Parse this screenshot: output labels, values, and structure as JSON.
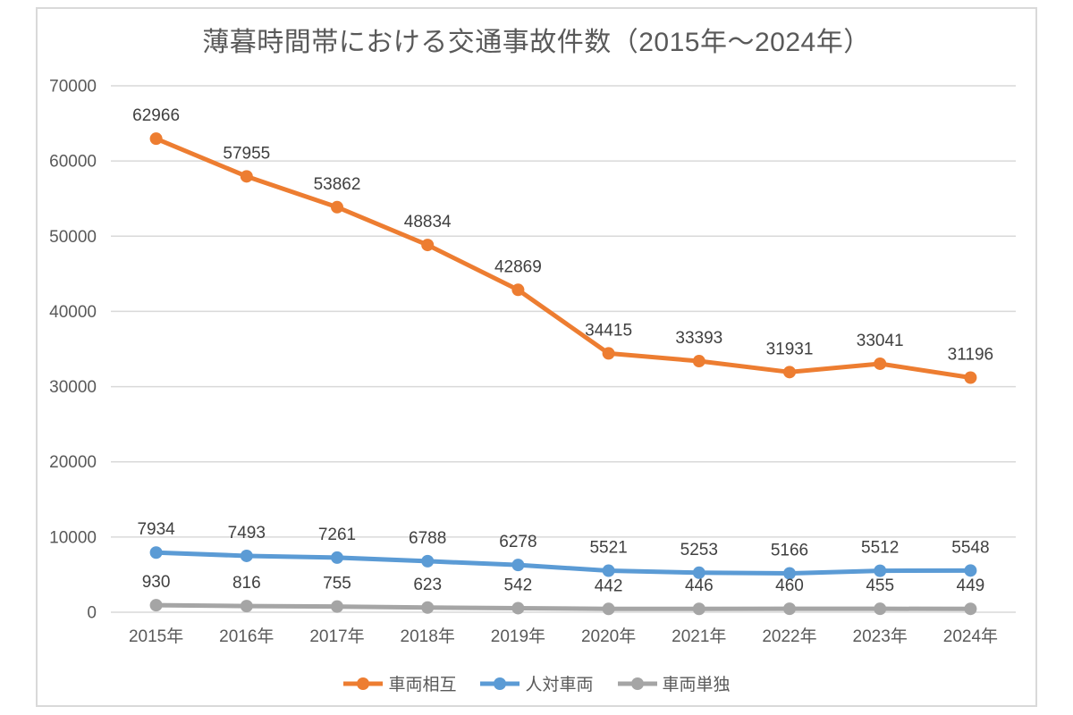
{
  "chart_data": {
    "type": "line",
    "title": "薄暮時間帯における交通事故件数（2015年～2024年）",
    "categories": [
      "2015年",
      "2016年",
      "2017年",
      "2018年",
      "2019年",
      "2020年",
      "2021年",
      "2022年",
      "2023年",
      "2024年"
    ],
    "series": [
      {
        "name": "車両相互",
        "color": "#ED7D31",
        "values": [
          62966,
          57955,
          53862,
          48834,
          42869,
          34415,
          33393,
          31931,
          33041,
          31196
        ]
      },
      {
        "name": "人対車両",
        "color": "#5B9BD5",
        "values": [
          7934,
          7493,
          7261,
          6788,
          6278,
          5521,
          5253,
          5166,
          5512,
          5548
        ]
      },
      {
        "name": "車両単独",
        "color": "#A5A5A5",
        "values": [
          930,
          816,
          755,
          623,
          542,
          442,
          446,
          460,
          455,
          449
        ]
      }
    ],
    "ylim": [
      0,
      70000
    ],
    "ytick_interval": 10000,
    "yticks": [
      "0",
      "10000",
      "20000",
      "30000",
      "40000",
      "50000",
      "60000",
      "70000"
    ],
    "xlabel": "",
    "ylabel": "",
    "grid": true,
    "data_labels": true,
    "legend_position": "bottom",
    "colors": {
      "gridline": "#D9D9D9",
      "chart_border": "#D9D9D9",
      "axis_text": "#595959",
      "data_label_text": "#404040",
      "title_text": "#595959",
      "background": "#FFFFFF"
    }
  }
}
